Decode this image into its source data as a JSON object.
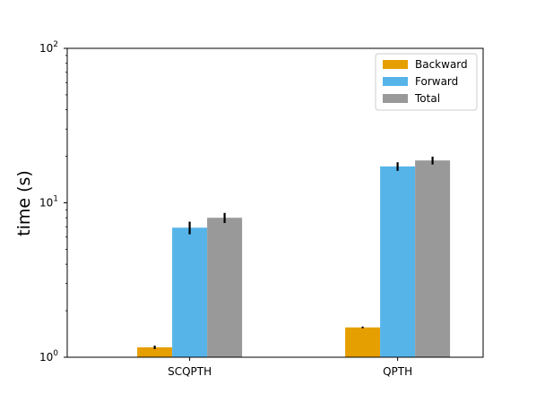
{
  "chart_data": {
    "type": "bar",
    "title": "",
    "xlabel": "",
    "ylabel": "time (s)",
    "yscale": "log",
    "ylim": [
      1,
      100
    ],
    "yticks": [
      {
        "value": 1,
        "base": "10",
        "exp": "0"
      },
      {
        "value": 10,
        "base": "10",
        "exp": "1"
      },
      {
        "value": 100,
        "base": "10",
        "exp": "2"
      }
    ],
    "categories": [
      "SCQPTH",
      "QPTH"
    ],
    "series": [
      {
        "name": "Backward",
        "color": "#e69f00",
        "values": [
          1.16,
          1.56
        ],
        "errors": [
          0.03,
          0.02
        ]
      },
      {
        "name": "Forward",
        "color": "#56b4e9",
        "values": [
          6.9,
          17.2
        ],
        "errors": [
          0.65,
          1.1
        ]
      },
      {
        "name": "Total",
        "color": "#999999",
        "values": [
          8.0,
          18.8
        ],
        "errors": [
          0.6,
          1.1
        ]
      }
    ],
    "grid": false,
    "legend_position": "top-right"
  }
}
